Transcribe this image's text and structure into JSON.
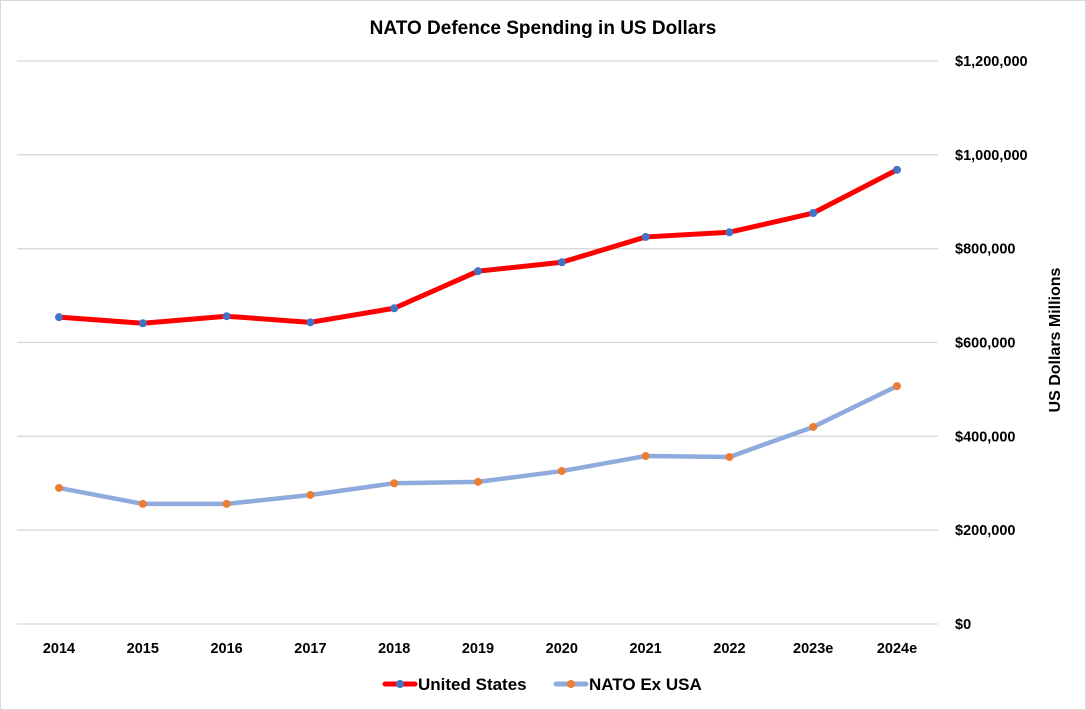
{
  "chart_data": {
    "type": "line",
    "title": "NATO Defence Spending in US Dollars",
    "xlabel": "",
    "ylabel": "US Dollars Millions",
    "y_axis_position": "right",
    "ylim": [
      0,
      1200000
    ],
    "y_ticks": [
      0,
      200000,
      400000,
      600000,
      800000,
      1000000,
      1200000
    ],
    "y_tick_labels": [
      "$0",
      "$200,000",
      "$400,000",
      "$600,000",
      "$800,000",
      "$1,000,000",
      "$1,200,000"
    ],
    "grid": true,
    "legend_position": "bottom",
    "categories": [
      "2014",
      "2015",
      "2016",
      "2017",
      "2018",
      "2019",
      "2020",
      "2021",
      "2022",
      "2023e",
      "2024e"
    ],
    "series": [
      {
        "name": "United States",
        "line_color": "#ff0000",
        "marker_color": "#4472c4",
        "values": [
          654000,
          641000,
          656000,
          643000,
          673000,
          752000,
          771000,
          825000,
          835000,
          876000,
          968000
        ]
      },
      {
        "name": "NATO Ex USA",
        "line_color": "#8faadc",
        "marker_color": "#ed7d31",
        "values": [
          290000,
          256000,
          256000,
          275000,
          300000,
          303000,
          326000,
          358000,
          356000,
          420000,
          507000
        ]
      }
    ]
  }
}
